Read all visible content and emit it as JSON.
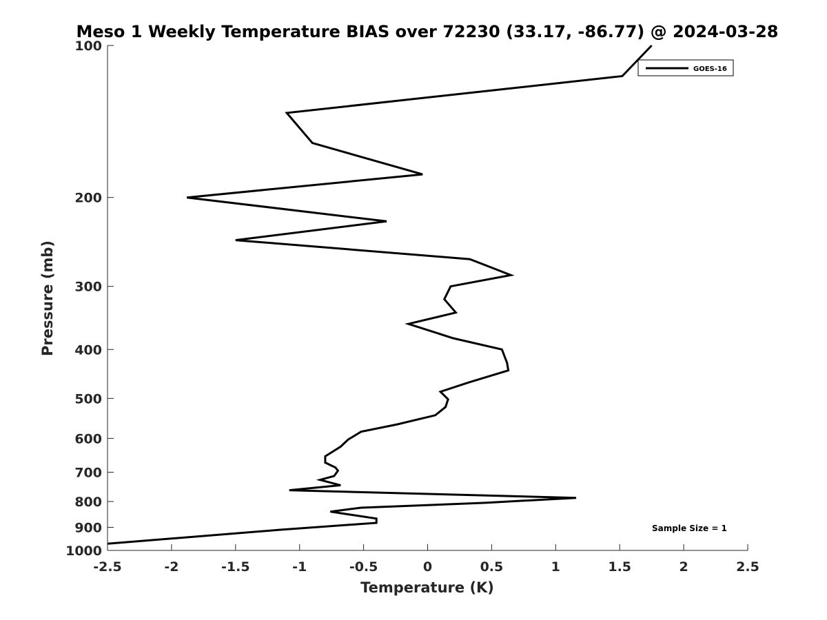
{
  "chart_data": {
    "type": "line",
    "title": "Meso 1 Weekly Temperature BIAS over 72230 (33.17, -86.77) @ 2024-03-28",
    "xlabel": "Temperature (K)",
    "ylabel": "Pressure (mb)",
    "xlim": [
      -2.5,
      2.5
    ],
    "ylim": [
      100,
      1000
    ],
    "yscale": "log",
    "y_reversed": true,
    "grid": false,
    "x_ticks": [
      -2.5,
      -2,
      -1.5,
      -1,
      -0.5,
      0,
      0.5,
      1,
      1.5,
      2,
      2.5
    ],
    "x_tick_labels": [
      "-2.5",
      "-2",
      "-1.5",
      "-1",
      "-0.5",
      "0",
      "0.5",
      "1",
      "1.5",
      "2",
      "2.5"
    ],
    "y_ticks": [
      100,
      200,
      300,
      400,
      500,
      600,
      700,
      800,
      900,
      1000
    ],
    "y_tick_labels": [
      "100",
      "200",
      "300",
      "400",
      "500",
      "600",
      "700",
      "800",
      "900",
      "1000"
    ],
    "legend": {
      "position": "top-right",
      "entries": [
        "GOES-16"
      ]
    },
    "annotation": "Sample Size = 1",
    "series": [
      {
        "name": "GOES-16",
        "color": "#000000",
        "points": [
          {
            "t": 1.75,
            "p": 100
          },
          {
            "t": 1.52,
            "p": 115
          },
          {
            "t": -1.1,
            "p": 136
          },
          {
            "t": -0.9,
            "p": 156
          },
          {
            "t": -0.04,
            "p": 180
          },
          {
            "t": -1.88,
            "p": 200
          },
          {
            "t": -0.32,
            "p": 223
          },
          {
            "t": -1.5,
            "p": 243
          },
          {
            "t": 0.33,
            "p": 265
          },
          {
            "t": 0.65,
            "p": 285
          },
          {
            "t": 0.18,
            "p": 300
          },
          {
            "t": 0.13,
            "p": 318
          },
          {
            "t": 0.22,
            "p": 338
          },
          {
            "t": -0.15,
            "p": 356
          },
          {
            "t": 0.2,
            "p": 380
          },
          {
            "t": 0.58,
            "p": 400
          },
          {
            "t": 0.62,
            "p": 425
          },
          {
            "t": 0.63,
            "p": 440
          },
          {
            "t": 0.32,
            "p": 465
          },
          {
            "t": 0.1,
            "p": 485
          },
          {
            "t": 0.16,
            "p": 502
          },
          {
            "t": 0.14,
            "p": 520
          },
          {
            "t": 0.06,
            "p": 540
          },
          {
            "t": -0.24,
            "p": 563
          },
          {
            "t": -0.52,
            "p": 582
          },
          {
            "t": -0.62,
            "p": 603
          },
          {
            "t": -0.68,
            "p": 623
          },
          {
            "t": -0.8,
            "p": 651
          },
          {
            "t": -0.8,
            "p": 670
          },
          {
            "t": -0.72,
            "p": 685
          },
          {
            "t": -0.7,
            "p": 695
          },
          {
            "t": -0.73,
            "p": 712
          },
          {
            "t": -0.84,
            "p": 725
          },
          {
            "t": -0.68,
            "p": 743
          },
          {
            "t": -1.08,
            "p": 760
          },
          {
            "t": 1.16,
            "p": 787
          },
          {
            "t": 0.45,
            "p": 805
          },
          {
            "t": -0.52,
            "p": 823
          },
          {
            "t": -0.76,
            "p": 838
          },
          {
            "t": -0.4,
            "p": 865
          },
          {
            "t": -0.4,
            "p": 882
          },
          {
            "t": -1.15,
            "p": 910
          },
          {
            "t": -2.5,
            "p": 970
          }
        ]
      }
    ]
  }
}
